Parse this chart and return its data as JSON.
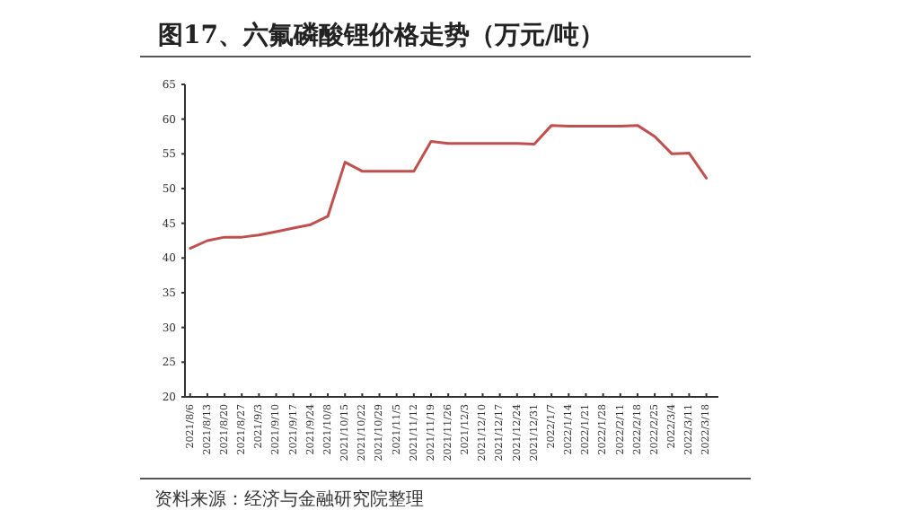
{
  "chart_data": {
    "type": "line",
    "title": "图17、六氟磷酸锂价格走势（万元/吨）",
    "categories": [
      "2021/8/6",
      "2021/8/13",
      "2021/8/20",
      "2021/8/27",
      "2021/9/3",
      "2021/9/10",
      "2021/9/17",
      "2021/9/24",
      "2021/10/8",
      "2021/10/15",
      "2021/10/22",
      "2021/10/29",
      "2021/11/5",
      "2021/11/12",
      "2021/11/19",
      "2021/11/26",
      "2021/12/3",
      "2021/12/10",
      "2021/12/17",
      "2021/12/24",
      "2021/12/31",
      "2022/1/7",
      "2022/1/14",
      "2022/1/21",
      "2022/1/28",
      "2022/2/11",
      "2022/2/18",
      "2022/2/25",
      "2022/3/4",
      "2022/3/11",
      "2022/3/18"
    ],
    "series": [
      {
        "color": "#c0504d",
        "values": [
          41.4,
          42.5,
          43,
          43,
          43.3,
          43.8,
          44.3,
          44.8,
          46,
          53.8,
          52.5,
          52.5,
          52.5,
          52.5,
          56.8,
          56.5,
          56.5,
          56.5,
          56.5,
          56.5,
          56.4,
          59.1,
          59,
          59,
          59,
          59,
          59.1,
          57.5,
          55,
          55.1,
          51.5
        ]
      }
    ],
    "ylim": [
      20,
      65
    ],
    "yticks": [
      20,
      25,
      30,
      35,
      40,
      45,
      50,
      55,
      60,
      65
    ],
    "marker": "none",
    "line_style": "solid",
    "annotations": [
      "资料来源：经济与金融研究院整理"
    ]
  }
}
